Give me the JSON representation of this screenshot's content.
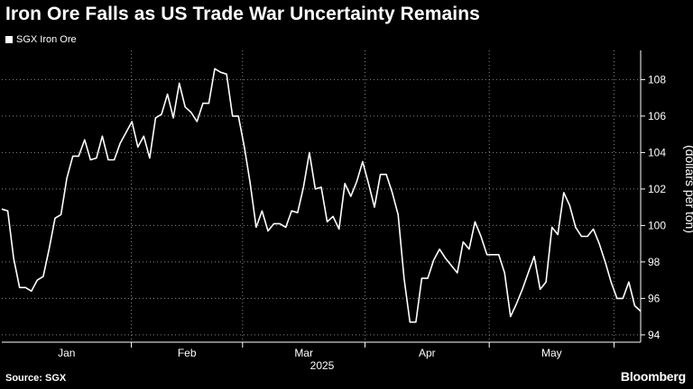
{
  "title": "Iron Ore Falls as US Trade War Uncertainty Remains",
  "source": "Source: SGX",
  "brand": "Bloomberg",
  "colors": {
    "background": "#000000",
    "line": "#ffffff",
    "grid": "#8a8a8a"
  },
  "chart_data": {
    "type": "line",
    "title": "Iron Ore Falls as US Trade War Uncertainty Remains",
    "ylabel": "(dollars per ton)",
    "ylim": [
      93.6,
      109.6
    ],
    "yticks": [
      94,
      96,
      98,
      100,
      102,
      104,
      106,
      108
    ],
    "year_label": "2025",
    "month_labels": [
      "Jan",
      "Feb",
      "Mar",
      "Apr",
      "May"
    ],
    "grid": true,
    "legend_position": "top-left",
    "series": [
      {
        "name": "SGX Iron Ore",
        "values": [
          100.9,
          100.8,
          98.2,
          96.6,
          96.6,
          96.4,
          97.0,
          97.2,
          98.7,
          100.4,
          100.6,
          102.6,
          103.8,
          103.8,
          104.7,
          103.6,
          103.7,
          104.9,
          103.6,
          103.6,
          104.5,
          105.1,
          105.7,
          104.3,
          104.9,
          103.7,
          105.9,
          106.1,
          107.2,
          105.9,
          107.8,
          106.5,
          106.2,
          105.7,
          106.7,
          106.7,
          108.6,
          108.4,
          108.3,
          106.0,
          106.0,
          104.3,
          102.3,
          99.9,
          100.8,
          99.7,
          100.1,
          100.1,
          99.9,
          100.8,
          100.7,
          102.1,
          104.0,
          102.0,
          102.1,
          100.2,
          100.5,
          99.8,
          102.3,
          101.6,
          102.4,
          103.5,
          102.3,
          101.0,
          102.8,
          102.8,
          101.8,
          100.6,
          97.1,
          94.7,
          94.7,
          97.1,
          97.1,
          98.1,
          98.7,
          98.2,
          97.8,
          97.4,
          99.1,
          98.7,
          100.2,
          99.4,
          98.4,
          98.4,
          98.4,
          97.4,
          95.0,
          95.7,
          96.5,
          97.4,
          98.3,
          96.5,
          96.9,
          99.9,
          99.5,
          101.8,
          101.1,
          99.9,
          99.4,
          99.4,
          99.8,
          99.0,
          98.0,
          96.9,
          96.0,
          96.0,
          96.9,
          95.6,
          95.3
        ]
      }
    ]
  }
}
